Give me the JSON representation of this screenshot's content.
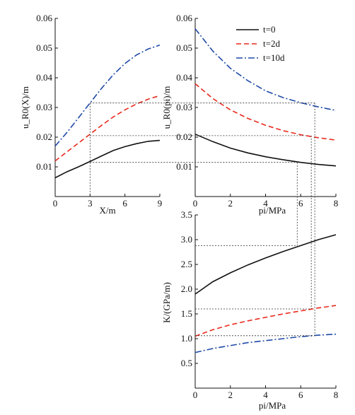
{
  "chart_data": [
    {
      "type": "line",
      "panel": "top-left",
      "xlabel": "X/m",
      "ylabel": "u_R0(X)/m",
      "xlim": [
        0,
        9
      ],
      "ylim": [
        0,
        0.06
      ],
      "xticks": [
        "0",
        "3",
        "6",
        "9"
      ],
      "yticks": [
        "0.01",
        "0.02",
        "0.03",
        "0.04",
        "0.05",
        "0.06"
      ],
      "x": [
        0,
        1,
        2,
        3,
        4,
        5,
        6,
        7,
        8,
        9
      ],
      "series": [
        {
          "name": "t=0",
          "color": "#111111",
          "dash": "solid",
          "values": [
            0.0063,
            0.0083,
            0.01,
            0.0118,
            0.0137,
            0.0155,
            0.0168,
            0.0178,
            0.0186,
            0.0189
          ]
        },
        {
          "name": "t=2d",
          "color": "#e8291c",
          "dash": "dashed",
          "values": [
            0.012,
            0.015,
            0.018,
            0.021,
            0.024,
            0.0268,
            0.0292,
            0.0312,
            0.0328,
            0.034
          ]
        },
        {
          "name": "t=10d",
          "color": "#1f4aa8",
          "dash": "dashdot",
          "values": [
            0.017,
            0.0215,
            0.0265,
            0.0315,
            0.0365,
            0.041,
            0.0448,
            0.0477,
            0.0497,
            0.051
          ]
        }
      ]
    },
    {
      "type": "line",
      "panel": "top-right",
      "xlabel": "pi/MPa",
      "ylabel": "u_R0(pi)/m",
      "xlim": [
        0,
        8
      ],
      "ylim": [
        0,
        0.06
      ],
      "xticks": [
        "0",
        "2",
        "4",
        "6",
        "8"
      ],
      "yticks": [
        "0.01",
        "0.02",
        "0.03",
        "0.04",
        "0.05",
        "0.06"
      ],
      "legend": {
        "position": "top-right",
        "entries": [
          "t=0",
          "t=2d",
          "t=10d"
        ]
      },
      "x": [
        0,
        1,
        2,
        3,
        4,
        5,
        6,
        7,
        8
      ],
      "series": [
        {
          "name": "t=0",
          "color": "#111111",
          "dash": "solid",
          "values": [
            0.021,
            0.0185,
            0.0163,
            0.0147,
            0.0134,
            0.0124,
            0.0115,
            0.0108,
            0.0103
          ]
        },
        {
          "name": "t=2d",
          "color": "#e8291c",
          "dash": "dashed",
          "values": [
            0.038,
            0.033,
            0.0292,
            0.0263,
            0.024,
            0.0222,
            0.0208,
            0.0198,
            0.019
          ]
        },
        {
          "name": "t=10d",
          "color": "#1f4aa8",
          "dash": "dashdot",
          "values": [
            0.0565,
            0.049,
            0.0432,
            0.039,
            0.0356,
            0.0333,
            0.0316,
            0.0302,
            0.029
          ]
        }
      ]
    },
    {
      "type": "line",
      "panel": "bottom-right",
      "xlabel": "pi/MPa",
      "ylabel": "K/(GPa/m)",
      "xlim": [
        0,
        8
      ],
      "ylim": [
        0,
        3.5
      ],
      "xticks": [
        "0",
        "2",
        "4",
        "6",
        "8"
      ],
      "yticks": [
        "0.5",
        "1.0",
        "1.5",
        "2.0",
        "2.5",
        "3.0",
        "3.5"
      ],
      "x": [
        0,
        1,
        2,
        3,
        4,
        5,
        6,
        7,
        8
      ],
      "series": [
        {
          "name": "t=0",
          "color": "#111111",
          "dash": "solid",
          "values": [
            1.9,
            2.15,
            2.33,
            2.49,
            2.63,
            2.76,
            2.88,
            3.0,
            3.1
          ]
        },
        {
          "name": "t=2d",
          "color": "#e8291c",
          "dash": "dashed",
          "values": [
            1.05,
            1.18,
            1.28,
            1.36,
            1.43,
            1.5,
            1.56,
            1.62,
            1.67
          ]
        },
        {
          "name": "t=10d",
          "color": "#1f4aa8",
          "dash": "dashdot",
          "values": [
            0.72,
            0.8,
            0.86,
            0.92,
            0.96,
            1.0,
            1.04,
            1.07,
            1.09
          ]
        }
      ]
    }
  ]
}
